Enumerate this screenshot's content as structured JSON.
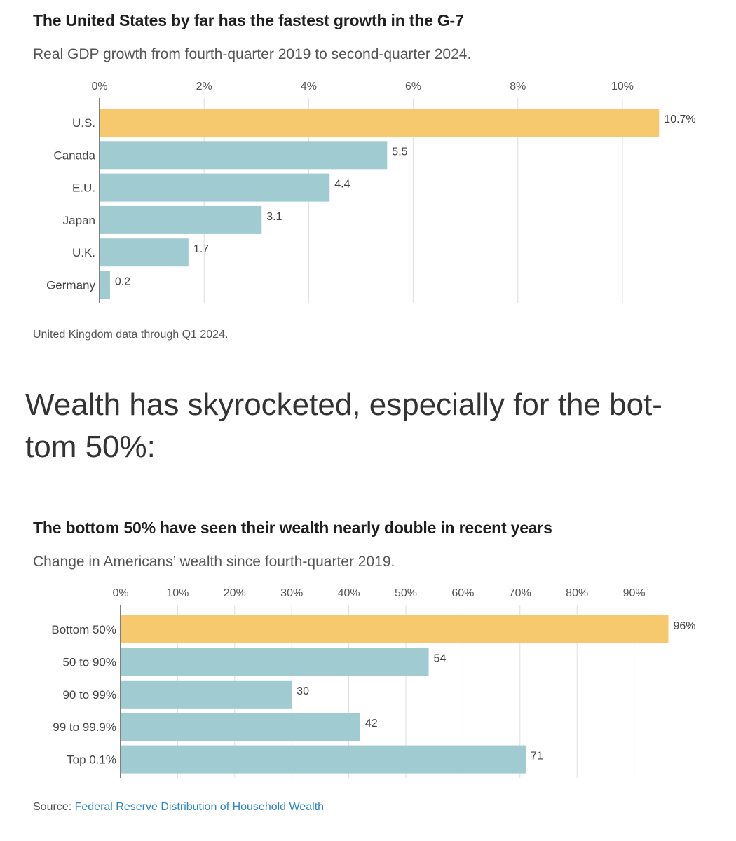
{
  "headline": "Wealth has skyrocketed, especially for the bot-tom 50%:",
  "colors": {
    "highlight": "#f7c96e",
    "bar": "#a0cbd1",
    "grid": "#dedede",
    "axis": "#555555"
  },
  "chart1": {
    "title": "The United States by far has the fastest growth in the G-7",
    "subtitle": "Real GDP growth from fourth-quarter 2019 to second-quarter 2024.",
    "note": "United Kingdom data through Q1 2024."
  },
  "chart2": {
    "title": "The bottom 50% have seen their wealth nearly double in recent years",
    "subtitle": "Change in Americans’ wealth since fourth-quarter 2019.",
    "source_label": "Source:",
    "source_link": "Federal Reserve Distribution of Household Wealth"
  },
  "chart_data": [
    {
      "type": "bar",
      "orientation": "horizontal",
      "title": "The United States by far has the fastest growth in the G-7",
      "subtitle": "Real GDP growth from fourth-quarter 2019 to second-quarter 2024.",
      "categories": [
        "U.S.",
        "Canada",
        "E.U.",
        "Japan",
        "U.K.",
        "Germany"
      ],
      "values": [
        10.7,
        5.5,
        4.4,
        3.1,
        1.7,
        0.2
      ],
      "value_labels": [
        "10.7%",
        "5.5",
        "4.4",
        "3.1",
        "1.7",
        "0.2"
      ],
      "highlight_index": 0,
      "xlim": [
        0,
        11
      ],
      "xticks": [
        0,
        2,
        4,
        6,
        8,
        10
      ],
      "xtick_labels": [
        "0%",
        "2%",
        "4%",
        "6%",
        "8%",
        "10%"
      ],
      "grid": true,
      "note": "United Kingdom data through Q1 2024."
    },
    {
      "type": "bar",
      "orientation": "horizontal",
      "title": "The bottom 50% have seen their wealth nearly double in recent years",
      "subtitle": "Change in Americans’ wealth since fourth-quarter 2019.",
      "categories": [
        "Bottom 50%",
        "50 to 90%",
        "90 to 99%",
        "99 to 99.9%",
        "Top 0.1%"
      ],
      "values": [
        96,
        54,
        30,
        42,
        71
      ],
      "value_labels": [
        "96%",
        "54",
        "30",
        "42",
        "71"
      ],
      "highlight_index": 0,
      "xlim": [
        0,
        100
      ],
      "xticks": [
        0,
        10,
        20,
        30,
        40,
        50,
        60,
        70,
        80,
        90
      ],
      "xtick_labels": [
        "0%",
        "10%",
        "20%",
        "30%",
        "40%",
        "50%",
        "60%",
        "70%",
        "80%",
        "90%"
      ],
      "grid": true,
      "source": "Source: Federal Reserve Distribution of Household Wealth"
    }
  ]
}
